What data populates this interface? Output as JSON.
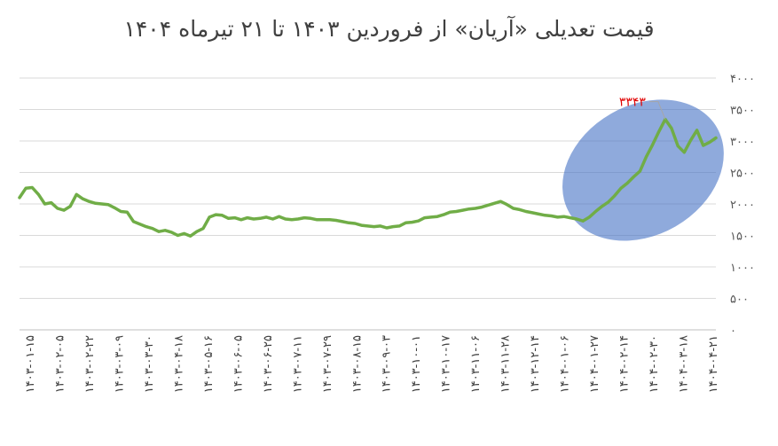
{
  "chart_data": {
    "type": "line",
    "title": "قیمت تعدیلی «آریان» از فروردین ۱۴۰۳ تا ۲۱ تیرماه ۱۴۰۴",
    "xlabel": "",
    "ylabel": "",
    "ylim": [
      0,
      4000
    ],
    "yticks": [
      0,
      500,
      1000,
      1500,
      2000,
      2500,
      3000,
      3500,
      4000
    ],
    "ytick_labels": [
      "۰",
      "۵۰۰",
      "۱۰۰۰",
      "۱۵۰۰",
      "۲۰۰۰",
      "۲۵۰۰",
      "۳۰۰۰",
      "۳۵۰۰",
      "۴۰۰۰"
    ],
    "grid": true,
    "legend": "none",
    "line_color": "#70ad47",
    "highlight_color": "#4472c4",
    "x_tick_labels": [
      "۱۴۰۳-۰۱-۱۵",
      "۱۴۰۳-۰۲-۰۵",
      "۱۴۰۳-۰۲-۲۲",
      "۱۴۰۳-۰۳-۰۹",
      "۱۴۰۳-۰۳-۳۰",
      "۱۴۰۳-۰۴-۱۸",
      "۱۴۰۳-۰۵-۱۶",
      "۱۴۰۳-۰۶-۰۵",
      "۱۴۰۳-۰۶-۲۵",
      "۱۴۰۳-۰۷-۱۱",
      "۱۴۰۳-۰۷-۲۹",
      "۱۴۰۳-۰۸-۱۵",
      "۱۴۰۳-۰۹-۰۳",
      "۱۴۰۳-۱۰-۰۱",
      "۱۴۰۳-۱۰-۱۷",
      "۱۴۰۳-۱۱-۰۶",
      "۱۴۰۳-۱۱-۲۸",
      "۱۴۰۳-۱۲-۱۴",
      "۱۴۰۴-۰۱-۰۶",
      "۱۴۰۴-۰۱-۲۷",
      "۱۴۰۴-۰۲-۱۴",
      "۱۴۰۴-۰۲-۳۰",
      "۱۴۰۴-۰۳-۱۸",
      "۱۴۰۴-۰۴-۲۱"
    ],
    "values": [
      2100,
      2250,
      2260,
      2150,
      2000,
      2020,
      1930,
      1900,
      1960,
      2150,
      2080,
      2040,
      2010,
      2000,
      1990,
      1940,
      1880,
      1870,
      1720,
      1680,
      1640,
      1610,
      1560,
      1580,
      1550,
      1500,
      1530,
      1490,
      1560,
      1610,
      1790,
      1830,
      1820,
      1770,
      1780,
      1750,
      1780,
      1760,
      1770,
      1790,
      1760,
      1800,
      1760,
      1750,
      1760,
      1780,
      1770,
      1750,
      1750,
      1750,
      1740,
      1720,
      1700,
      1690,
      1660,
      1650,
      1640,
      1650,
      1620,
      1640,
      1650,
      1700,
      1710,
      1730,
      1780,
      1790,
      1800,
      1830,
      1870,
      1880,
      1900,
      1920,
      1930,
      1950,
      1980,
      2010,
      2040,
      1990,
      1930,
      1910,
      1880,
      1860,
      1840,
      1820,
      1810,
      1790,
      1800,
      1780,
      1760,
      1730,
      1790,
      1880,
      1960,
      2030,
      2130,
      2250,
      2330,
      2430,
      2520,
      2750,
      2940,
      3150,
      3343,
      3200,
      2920,
      2820,
      3010,
      3170,
      2930,
      2980,
      3050
    ],
    "annotation": {
      "label": "۳۳۴۳",
      "point_index": 102
    },
    "highlight": {
      "from_index": 87,
      "to_index": 110
    }
  }
}
